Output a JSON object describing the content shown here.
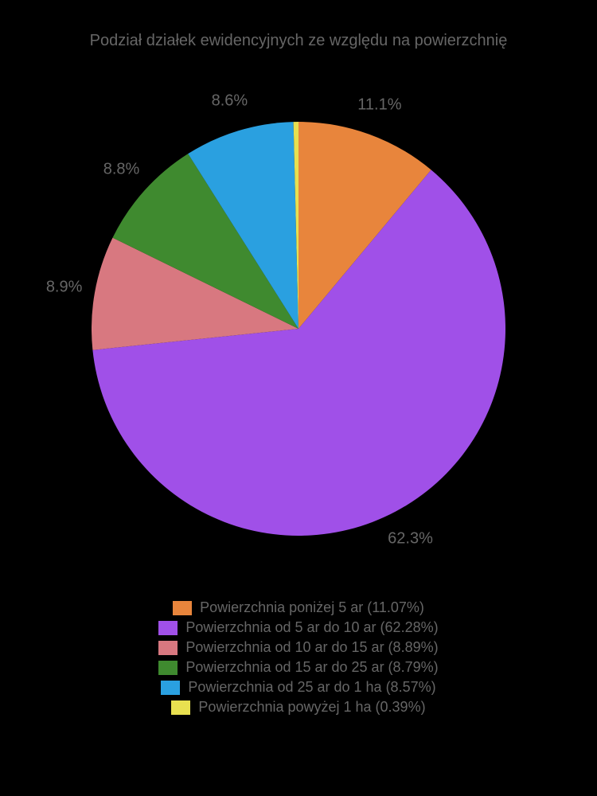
{
  "chart": {
    "type": "pie",
    "title": "Podział działek ewidencyjnych ze względu na powierzchnię",
    "title_color": "#666666",
    "title_fontsize": 20,
    "background_color": "#000000",
    "radius": 260,
    "start_angle_deg": 90,
    "direction": "clockwise",
    "label_color": "#666666",
    "label_fontsize": 20,
    "label_offset_ratio": 1.15,
    "slices": [
      {
        "label": "Powierzchnia poniżej 5 ar",
        "value": 11.07,
        "display_pct": "11.1%",
        "color": "#e8853c",
        "legend_pct": "11.07%"
      },
      {
        "label": "Powierzchnia od 5 ar do 10 ar",
        "value": 62.28,
        "display_pct": "62.3%",
        "color": "#a050e8",
        "legend_pct": "62.28%"
      },
      {
        "label": "Powierzchnia od 10 ar do 15 ar",
        "value": 8.89,
        "display_pct": "8.9%",
        "color": "#d87880",
        "legend_pct": "8.89%"
      },
      {
        "label": "Powierzchnia od 15 ar do 25 ar",
        "value": 8.79,
        "display_pct": "8.8%",
        "color": "#3f8a2f",
        "legend_pct": "8.79%"
      },
      {
        "label": "Powierzchnia od 25 ar do 1 ha",
        "value": 8.57,
        "display_pct": "8.6%",
        "color": "#2aa0e0",
        "legend_pct": "8.57%"
      },
      {
        "label": "Powierzchnia powyżej 1 ha",
        "value": 0.39,
        "display_pct": "",
        "color": "#e8e050",
        "legend_pct": "0.39%"
      }
    ],
    "legend": {
      "fontsize": 18,
      "text_color": "#666666",
      "swatch_width": 24,
      "swatch_height": 18
    }
  }
}
